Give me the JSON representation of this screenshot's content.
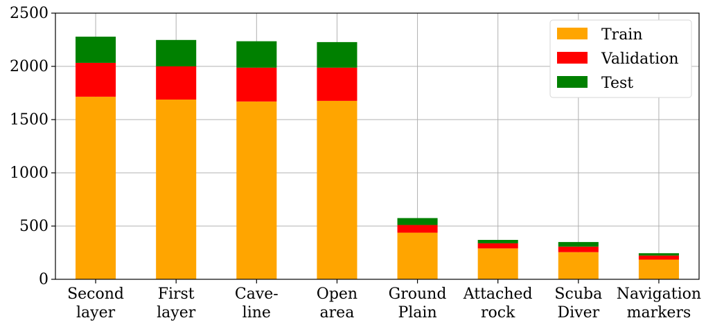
{
  "chart_data": {
    "type": "bar",
    "stacked": true,
    "title": "",
    "xlabel": "",
    "ylabel": "",
    "categories": [
      [
        "Second",
        "layer"
      ],
      [
        "First",
        "layer"
      ],
      [
        "Cave-",
        "line"
      ],
      [
        "Open",
        "area"
      ],
      [
        "Ground",
        "Plain"
      ],
      [
        "Attached",
        "rock"
      ],
      [
        "Scuba",
        "Diver"
      ],
      [
        "Navigation",
        "markers"
      ]
    ],
    "series": [
      {
        "name": "Train",
        "color": "#ffa500",
        "values": [
          1715,
          1688,
          1670,
          1676,
          438,
          290,
          255,
          185
        ]
      },
      {
        "name": "Validation",
        "color": "#ff0000",
        "values": [
          318,
          312,
          318,
          312,
          72,
          48,
          52,
          38
        ]
      },
      {
        "name": "Test",
        "color": "#008000",
        "values": [
          246,
          248,
          248,
          240,
          65,
          32,
          43,
          22
        ]
      }
    ],
    "ylim": [
      0,
      2500
    ],
    "yticks": [
      "0",
      "500",
      "1000",
      "1500",
      "2000",
      "2500"
    ],
    "grid": true,
    "legend_position": "top-right"
  }
}
